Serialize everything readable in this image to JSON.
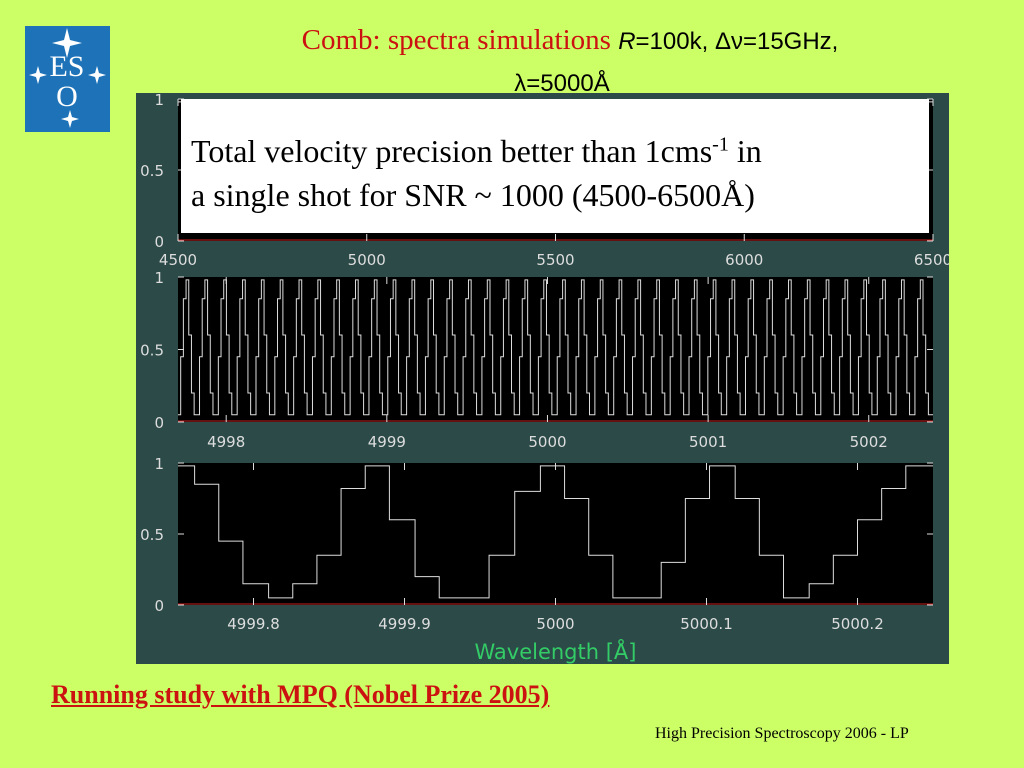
{
  "logo": {
    "letters": "ESO"
  },
  "title": {
    "serif_part": "Comb: spectra simulations ",
    "r_italic": "R",
    "r_value": "=100k, ",
    "delta_nu": "Δν",
    "dnu_value": "=15GHz,",
    "lambda_line": "λ=5000Å"
  },
  "callout": {
    "line1_pre": "Total velocity precision better than 1cms",
    "line1_sup": "-1",
    "line1_post": " in",
    "line2": "a single shot for SNR ~ 1000 (4500-6500Å)"
  },
  "study_link": "Running study with MPQ (Nobel Prize 2005)",
  "footer": "High Precision Spectroscopy 2006 - LP",
  "colors": {
    "plot_bg": "#2b4a48",
    "panel_bg": "#000000",
    "trace": "#dddddd",
    "baseline": "#cc2222",
    "axis_label": "#33cc66",
    "tick_text": "#dddddd"
  },
  "chart_data": [
    {
      "type": "line",
      "x_ticks": [
        "4500",
        "5000",
        "5500",
        "6000",
        "6500"
      ],
      "y_ticks": [
        "1",
        "0.5",
        "0"
      ],
      "xlim": [
        4500,
        6500
      ],
      "ylim": [
        0,
        1
      ],
      "series": [
        {
          "description_free": true,
          "x": [
            4500,
            6500
          ],
          "y": [
            0.98,
            0.98
          ]
        }
      ]
    },
    {
      "type": "line",
      "x_ticks": [
        "4998",
        "4999",
        "5000",
        "5001",
        "5002"
      ],
      "y_ticks": [
        "1",
        "0.5",
        "0"
      ],
      "xlim": [
        4997.7,
        5002.4
      ],
      "ylim": [
        0,
        1
      ],
      "comb_spacing": 0.1172,
      "comb_levels": [
        0.05,
        0.45,
        0.85,
        0.98,
        0.6,
        0.2,
        0.05
      ]
    },
    {
      "type": "line",
      "x_ticks": [
        "4999.8",
        "4999.9",
        "5000",
        "5000.1",
        "5000.2"
      ],
      "y_ticks": [
        "1",
        "0.5",
        "0"
      ],
      "xlim": [
        4999.75,
        5000.25
      ],
      "ylim": [
        0,
        1
      ],
      "xlabel": "Wavelength [Å]",
      "steps": [
        {
          "x": 4999.75,
          "y": 0.98
        },
        {
          "x": 4999.761,
          "y": 0.85
        },
        {
          "x": 4999.777,
          "y": 0.45
        },
        {
          "x": 4999.793,
          "y": 0.15
        },
        {
          "x": 4999.81,
          "y": 0.05
        },
        {
          "x": 4999.826,
          "y": 0.15
        },
        {
          "x": 4999.842,
          "y": 0.35
        },
        {
          "x": 4999.858,
          "y": 0.82
        },
        {
          "x": 4999.874,
          "y": 0.98
        },
        {
          "x": 4999.89,
          "y": 0.6
        },
        {
          "x": 4999.907,
          "y": 0.2
        },
        {
          "x": 4999.923,
          "y": 0.05
        },
        {
          "x": 4999.94,
          "y": 0.05
        },
        {
          "x": 4999.956,
          "y": 0.35
        },
        {
          "x": 4999.973,
          "y": 0.8
        },
        {
          "x": 4999.99,
          "y": 0.98
        },
        {
          "x": 5000.006,
          "y": 0.75
        },
        {
          "x": 5000.022,
          "y": 0.35
        },
        {
          "x": 5000.038,
          "y": 0.05
        },
        {
          "x": 5000.054,
          "y": 0.05
        },
        {
          "x": 5000.07,
          "y": 0.3
        },
        {
          "x": 5000.086,
          "y": 0.75
        },
        {
          "x": 5000.102,
          "y": 0.98
        },
        {
          "x": 5000.119,
          "y": 0.75
        },
        {
          "x": 5000.135,
          "y": 0.35
        },
        {
          "x": 5000.151,
          "y": 0.05
        },
        {
          "x": 5000.168,
          "y": 0.15
        },
        {
          "x": 5000.184,
          "y": 0.35
        },
        {
          "x": 5000.2,
          "y": 0.6
        },
        {
          "x": 5000.216,
          "y": 0.82
        },
        {
          "x": 5000.232,
          "y": 0.98
        },
        {
          "x": 5000.25,
          "y": 0.98
        }
      ]
    }
  ]
}
